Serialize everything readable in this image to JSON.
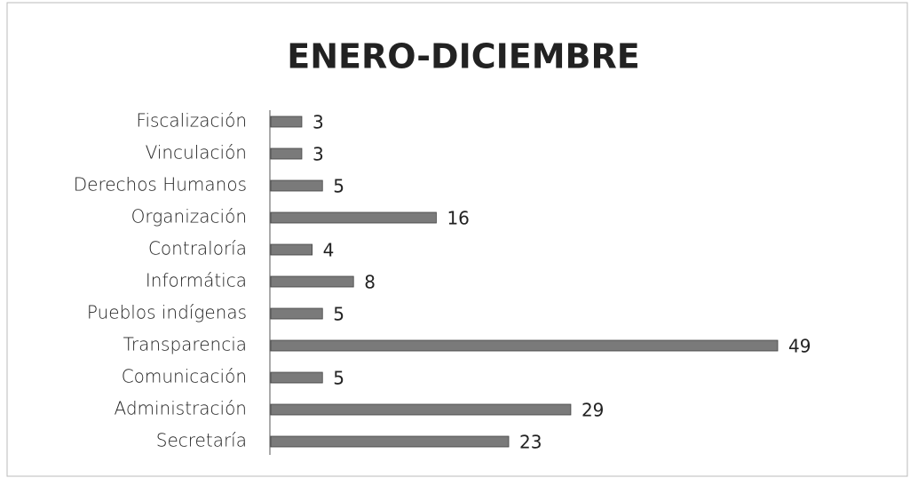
{
  "chart_data": {
    "type": "bar",
    "orientation": "horizontal",
    "title": "ENERO-DICIEMBRE",
    "categories": [
      "Fiscalización",
      "Vinculación",
      "Derechos Humanos",
      "Organización",
      "Contraloría",
      "Informática",
      "Pueblos indígenas",
      "Transparencia",
      "Comunicación",
      "Administración",
      "Secretaría"
    ],
    "values": [
      3,
      3,
      5,
      16,
      4,
      8,
      5,
      49,
      5,
      29,
      23
    ],
    "color": "#7a7a7a"
  }
}
